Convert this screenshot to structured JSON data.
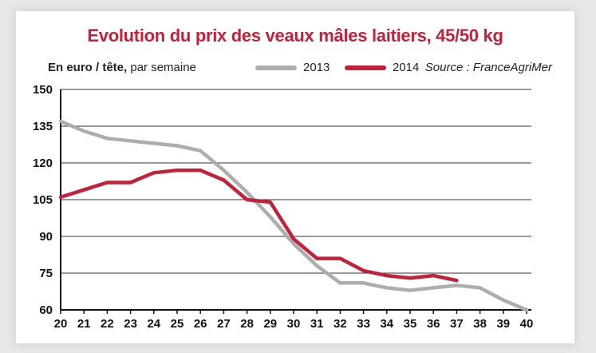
{
  "chart_data": {
    "type": "line",
    "title": "Evolution du prix des veaux mâles laitiers, 45/50 kg",
    "unit_bold": "En euro / tête,",
    "unit_rest": " par semaine",
    "source": "Source : FranceAgriMer",
    "x": [
      20,
      21,
      22,
      23,
      24,
      25,
      26,
      27,
      28,
      29,
      30,
      31,
      32,
      33,
      34,
      35,
      36,
      37,
      38,
      39,
      40
    ],
    "ylim": [
      60,
      150
    ],
    "yticks": [
      60,
      75,
      90,
      105,
      120,
      135,
      150
    ],
    "grid": true,
    "legend_position": "top",
    "series": [
      {
        "name": "2013",
        "color": "#adadad",
        "values": [
          137,
          133,
          130,
          129,
          128,
          127,
          125,
          117,
          108,
          98,
          87,
          78,
          71,
          71,
          69,
          68,
          69,
          70,
          69,
          64,
          60
        ]
      },
      {
        "name": "2014",
        "color": "#c4203a",
        "values": [
          106,
          109,
          112,
          112,
          116,
          117,
          117,
          113,
          105,
          104,
          89,
          81,
          81,
          76,
          74,
          73,
          74,
          72,
          null,
          null,
          null
        ]
      }
    ]
  }
}
